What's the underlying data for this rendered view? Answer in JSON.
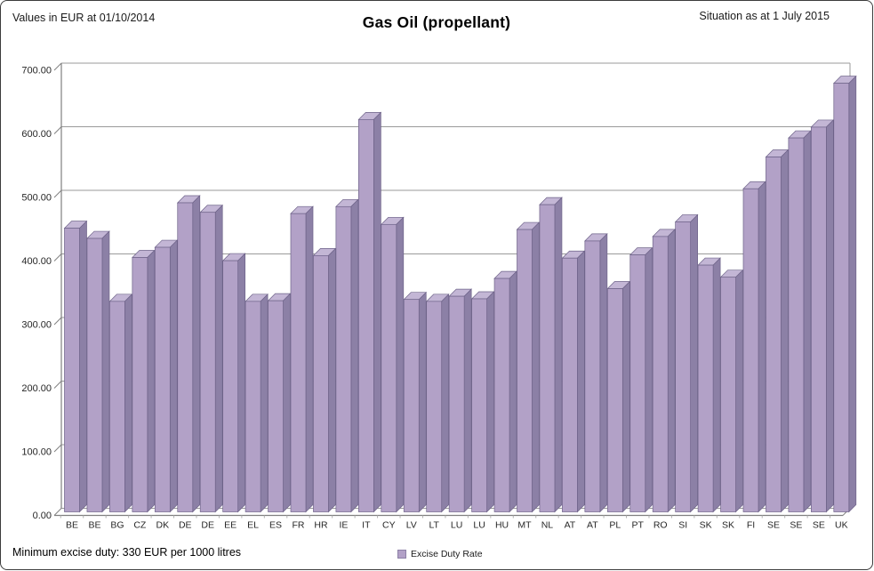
{
  "header": {
    "left_note": "Values in EUR at 01/10/2014",
    "title": "Gas Oil (propellant)",
    "right_note": "Situation as at 1 July 2015"
  },
  "footer": {
    "min_duty_note": "Minimum excise duty: 330 EUR per 1000 litres"
  },
  "legend": {
    "label": "Excise Duty Rate",
    "marker_color": "#b2a1c7"
  },
  "chart_data": {
    "type": "bar",
    "effect": "3d",
    "title": "Gas Oil (propellant)",
    "categories": [
      "BE",
      "BE",
      "BG",
      "CZ",
      "DK",
      "DE",
      "DE",
      "EE",
      "EL",
      "ES",
      "FR",
      "HR",
      "IE",
      "IT",
      "CY",
      "LV",
      "LT",
      "LU",
      "LU",
      "HU",
      "MT",
      "NL",
      "AT",
      "AT",
      "PL",
      "PT",
      "RO",
      "SI",
      "SK",
      "SK",
      "FI",
      "SE",
      "SE",
      "SE",
      "UK"
    ],
    "series": [
      {
        "name": "Excise Duty Rate",
        "values": [
          446,
          430,
          331,
          400,
          416,
          486,
          471,
          395,
          331,
          332,
          469,
          403,
          480,
          617,
          452,
          334,
          331,
          339,
          335,
          367,
          444,
          483,
          399,
          426,
          351,
          404,
          433,
          456,
          388,
          369,
          508,
          558,
          588,
          605,
          674
        ]
      }
    ],
    "ylabel": "",
    "xlabel": "",
    "ylim": [
      0,
      700
    ],
    "ytick_interval": 100,
    "ytick_labels": [
      "0.00",
      "100.00",
      "200.00",
      "300.00",
      "400.00",
      "500.00",
      "600.00",
      "700.00"
    ],
    "grid": true,
    "legend_position": "bottom",
    "reference_note": "Minimum excise duty: 330 EUR per 1000 litres",
    "colors": {
      "bar_front": "#b2a1c7",
      "bar_top": "#c3b6d5",
      "bar_side": "#8c80a6",
      "bar_stroke": "#6e6389",
      "gridline": "#9a9a9a",
      "axis": "#808080",
      "tick_text": "#262626"
    }
  }
}
